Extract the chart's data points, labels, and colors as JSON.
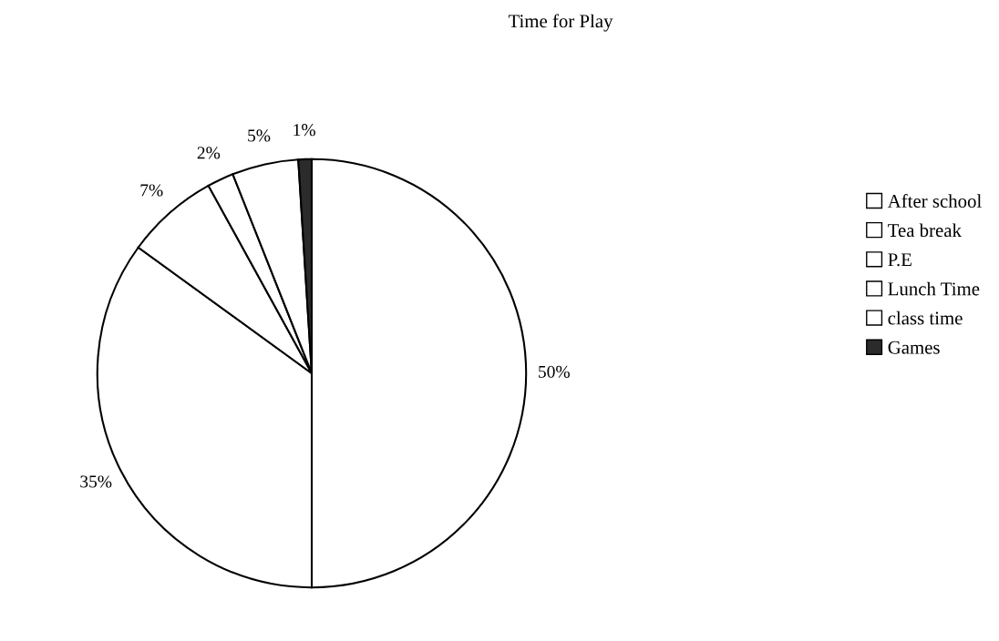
{
  "chart_data": {
    "type": "pie",
    "title": "Time for Play",
    "categories": [
      "After school",
      "Tea break",
      "P.E",
      "Lunch Time",
      "class time",
      "Games"
    ],
    "values": [
      50,
      35,
      7,
      2,
      5,
      1
    ],
    "value_labels": [
      "50%",
      "35%",
      "7%",
      "2%",
      "5%",
      "1%"
    ],
    "colors": [
      "#ffffff",
      "#ffffff",
      "#ffffff",
      "#ffffff",
      "#ffffff",
      "#2b2b2b"
    ],
    "legend": "right"
  }
}
